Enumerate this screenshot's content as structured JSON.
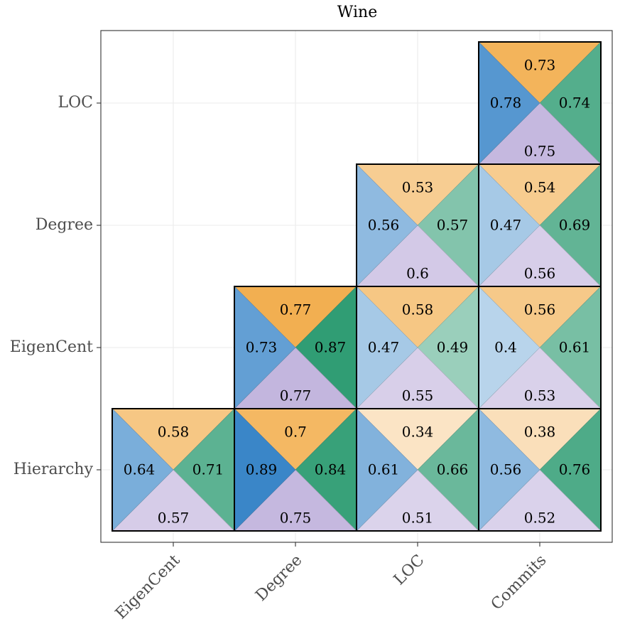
{
  "chart_data": {
    "type": "heatmap",
    "title": "Wine",
    "x_categories": [
      "EigenCent",
      "Degree",
      "LOC",
      "Commits"
    ],
    "y_categories": [
      "Hierarchy",
      "EigenCent",
      "Degree",
      "LOC"
    ],
    "grid": true,
    "palette": {
      "top": "#f0a030",
      "right": "#2a9a70",
      "bottom": "#b8a8d8",
      "left": "#3a86c8"
    },
    "cells": [
      {
        "x": "EigenCent",
        "y": "Hierarchy",
        "top": 0.58,
        "right": 0.71,
        "bottom": 0.57,
        "left": 0.64
      },
      {
        "x": "Degree",
        "y": "Hierarchy",
        "top": 0.7,
        "right": 0.84,
        "bottom": 0.75,
        "left": 0.89
      },
      {
        "x": "LOC",
        "y": "Hierarchy",
        "top": 0.34,
        "right": 0.66,
        "bottom": 0.51,
        "left": 0.61
      },
      {
        "x": "Commits",
        "y": "Hierarchy",
        "top": 0.38,
        "right": 0.76,
        "bottom": 0.52,
        "left": 0.56
      },
      {
        "x": "Degree",
        "y": "EigenCent",
        "top": 0.77,
        "right": 0.87,
        "bottom": 0.77,
        "left": 0.73
      },
      {
        "x": "LOC",
        "y": "EigenCent",
        "top": 0.58,
        "right": 0.49,
        "bottom": 0.55,
        "left": 0.47
      },
      {
        "x": "Commits",
        "y": "EigenCent",
        "top": 0.56,
        "right": 0.61,
        "bottom": 0.53,
        "left": 0.4
      },
      {
        "x": "LOC",
        "y": "Degree",
        "top": 0.53,
        "right": 0.57,
        "bottom": 0.6,
        "left": 0.56
      },
      {
        "x": "Commits",
        "y": "Degree",
        "top": 0.54,
        "right": 0.69,
        "bottom": 0.56,
        "left": 0.47
      },
      {
        "x": "Commits",
        "y": "LOC",
        "top": 0.73,
        "right": 0.74,
        "bottom": 0.75,
        "left": 0.78
      }
    ]
  }
}
